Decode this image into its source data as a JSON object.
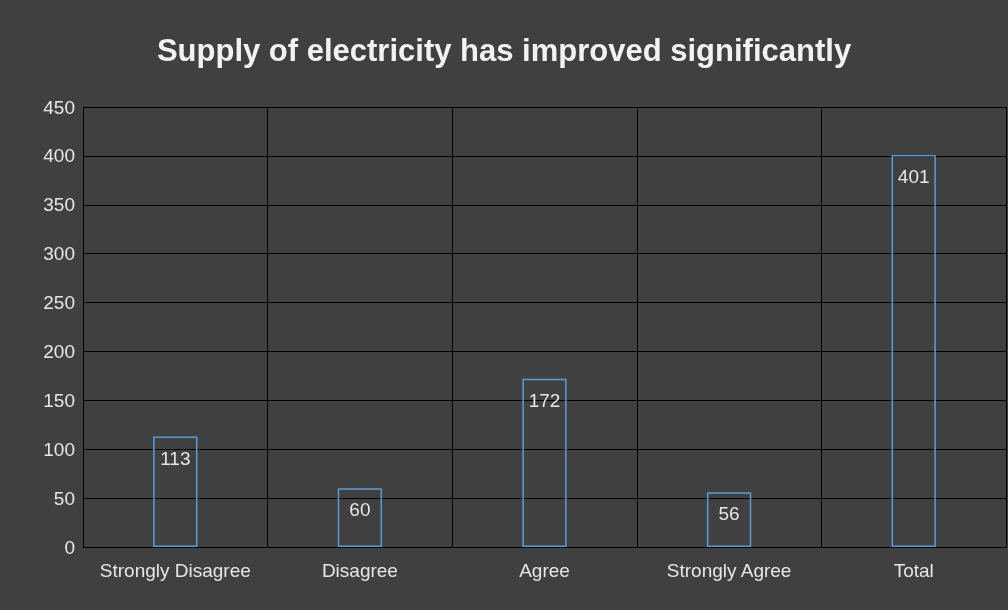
{
  "chart_data": {
    "type": "bar",
    "title": "Supply of electricity has improved significantly",
    "categories": [
      "Strongly Disagree",
      "Disagree",
      "Agree",
      "Strongly Agree",
      "Total"
    ],
    "values": [
      113,
      60,
      172,
      56,
      401
    ],
    "color": "#5b9bd5",
    "ylim": [
      0,
      450
    ],
    "yticks": [
      0,
      50,
      100,
      150,
      200,
      250,
      300,
      350,
      400,
      450
    ],
    "grid": true,
    "data_labels": true
  }
}
